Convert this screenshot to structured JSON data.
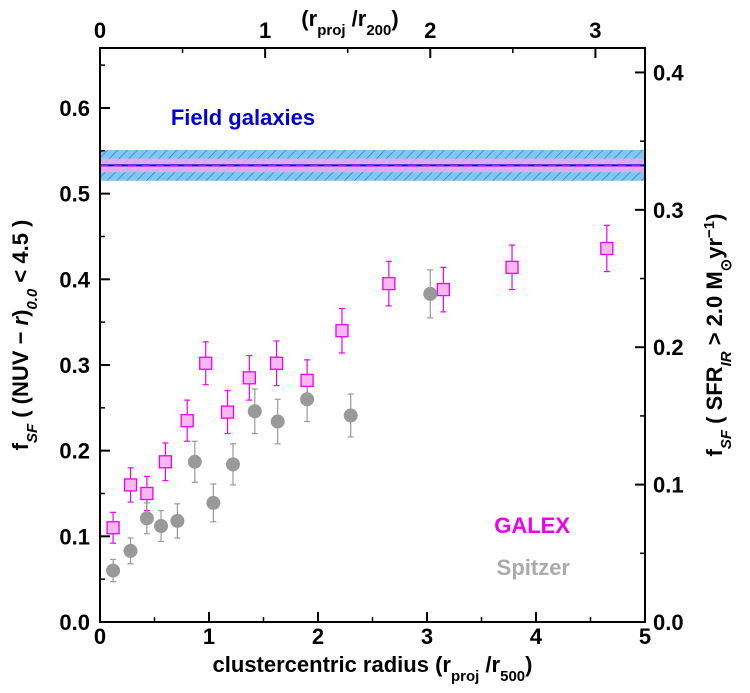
{
  "chart_data": {
    "type": "scatter",
    "x_axis": {
      "label_parts": [
        "clustercentric radius (r",
        "proj",
        " /r",
        "500",
        ")"
      ],
      "range": [
        0,
        5
      ],
      "ticks": [
        0,
        1,
        2,
        3,
        4,
        5
      ],
      "tick_labels": [
        "0",
        "1",
        "2",
        "3",
        "4",
        "5"
      ]
    },
    "top_axis": {
      "label_parts": [
        "(r",
        "proj",
        " /r",
        "200",
        ")"
      ],
      "ticks": [
        0,
        1,
        2,
        3
      ],
      "tick_labels": [
        "0",
        "1",
        "2",
        "3"
      ],
      "r200_per_r500": 1.515
    },
    "y_axis": {
      "label_parts": [
        "f",
        "SF",
        " ( (NUV − ",
        "r",
        ")",
        "0.0",
        " < 4.5 )"
      ],
      "range": [
        0,
        0.67
      ],
      "ticks": [
        0.0,
        0.1,
        0.2,
        0.3,
        0.4,
        0.5,
        0.6
      ],
      "tick_labels": [
        "0.0",
        "0.1",
        "0.2",
        "0.3",
        "0.4",
        "0.5",
        "0.6"
      ]
    },
    "right_axis": {
      "label_parts": [
        "f",
        "SF",
        " ( SFR",
        "IR",
        " > 2.0 M",
        "⊙",
        "yr",
        "−1",
        ")"
      ],
      "range": [
        0,
        0.4178
      ],
      "ticks": [
        0.0,
        0.1,
        0.2,
        0.3,
        0.4
      ],
      "tick_labels": [
        "0.0",
        "0.1",
        "0.2",
        "0.3",
        "0.4"
      ]
    },
    "field": {
      "label": "Field galaxies",
      "galex_value": 0.533,
      "galex_band": [
        0.525,
        0.541
      ],
      "spitzer_value": 0.533,
      "spitzer_band": [
        0.515,
        0.551
      ],
      "color": "#0000dd",
      "band_color": "#7ec8f0"
    },
    "series": [
      {
        "name": "GALEX",
        "marker": "square",
        "color": "#ee00ee",
        "fill": "#f7b8f2",
        "points": [
          {
            "x": 0.12,
            "y": 0.11,
            "err": 0.018
          },
          {
            "x": 0.28,
            "y": 0.16,
            "err": 0.02
          },
          {
            "x": 0.43,
            "y": 0.15,
            "err": 0.02
          },
          {
            "x": 0.6,
            "y": 0.187,
            "err": 0.022
          },
          {
            "x": 0.8,
            "y": 0.235,
            "err": 0.024
          },
          {
            "x": 0.97,
            "y": 0.302,
            "err": 0.025
          },
          {
            "x": 1.17,
            "y": 0.245,
            "err": 0.025
          },
          {
            "x": 1.37,
            "y": 0.285,
            "err": 0.026
          },
          {
            "x": 1.62,
            "y": 0.302,
            "err": 0.026
          },
          {
            "x": 1.9,
            "y": 0.282,
            "err": 0.024
          },
          {
            "x": 2.22,
            "y": 0.34,
            "err": 0.026
          },
          {
            "x": 2.65,
            "y": 0.395,
            "err": 0.026
          },
          {
            "x": 3.15,
            "y": 0.388,
            "err": 0.026
          },
          {
            "x": 3.78,
            "y": 0.414,
            "err": 0.026
          },
          {
            "x": 4.65,
            "y": 0.436,
            "err": 0.027
          }
        ]
      },
      {
        "name": "Spitzer",
        "marker": "circle",
        "color": "#999999",
        "fill": "#999999",
        "points": [
          {
            "x": 0.12,
            "y": 0.06,
            "err": 0.013
          },
          {
            "x": 0.28,
            "y": 0.083,
            "err": 0.015
          },
          {
            "x": 0.43,
            "y": 0.121,
            "err": 0.018
          },
          {
            "x": 0.56,
            "y": 0.112,
            "err": 0.018
          },
          {
            "x": 0.71,
            "y": 0.118,
            "err": 0.02
          },
          {
            "x": 0.87,
            "y": 0.187,
            "err": 0.024
          },
          {
            "x": 1.04,
            "y": 0.139,
            "err": 0.022
          },
          {
            "x": 1.22,
            "y": 0.184,
            "err": 0.024
          },
          {
            "x": 1.42,
            "y": 0.246,
            "err": 0.026
          },
          {
            "x": 1.63,
            "y": 0.234,
            "err": 0.026
          },
          {
            "x": 1.9,
            "y": 0.26,
            "err": 0.026
          },
          {
            "x": 2.3,
            "y": 0.241,
            "err": 0.025
          },
          {
            "x": 3.03,
            "y": 0.383,
            "err": 0.028
          }
        ]
      }
    ],
    "legend": [
      {
        "label": "GALEX",
        "color": "#ee00ee"
      },
      {
        "label": "Spitzer",
        "color": "#aaaaaa"
      }
    ],
    "legend_position": "bottom-right",
    "grid": false
  }
}
